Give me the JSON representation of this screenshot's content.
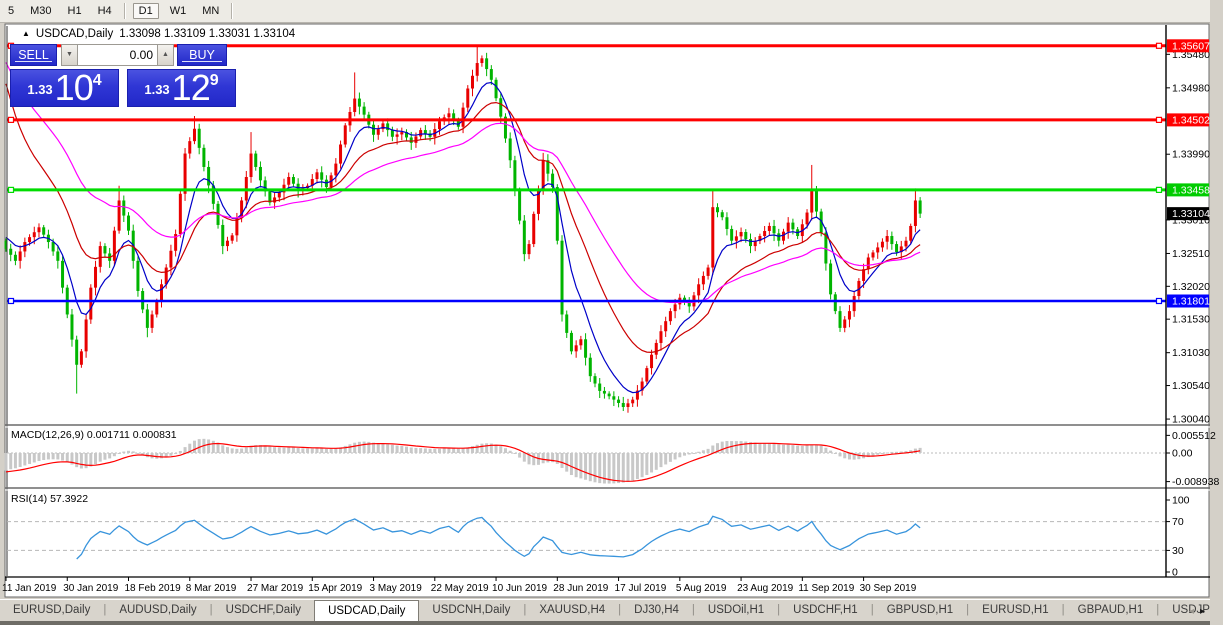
{
  "toolbar": {
    "timeframes": [
      {
        "label": "5",
        "active": false
      },
      {
        "label": "M30",
        "active": false
      },
      {
        "label": "H1",
        "active": false
      },
      {
        "label": "H4",
        "active": false
      },
      {
        "label": "D1",
        "active": true
      },
      {
        "label": "W1",
        "active": false
      },
      {
        "label": "MN",
        "active": false
      }
    ]
  },
  "chart_header": {
    "collapse_icon": "▲",
    "title": "USDCAD,Daily",
    "ohlc_text": "1.33098 1.33109 1.33031 1.33104"
  },
  "trade_panel": {
    "sell_label": "SELL",
    "buy_label": "BUY",
    "volume": "0.00",
    "spin_down_icon": "▼",
    "spin_up_icon": "▲",
    "sell_price": {
      "prefix": "1.33",
      "big": "10",
      "sup": "4"
    },
    "buy_price": {
      "prefix": "1.33",
      "big": "12",
      "sup": "9"
    }
  },
  "indicators": {
    "macd_label": "MACD(12,26,9) 0.001711 0.000831",
    "rsi_label": "RSI(14) 57.3922"
  },
  "chart_data": {
    "type": "candlestick",
    "symbol": "USDCAD",
    "timeframe": "Daily",
    "ohlc_display": {
      "open": "1.33098",
      "high": "1.33109",
      "low": "1.33031",
      "close": "1.33104"
    },
    "colors": {
      "up_candle": "#E80000",
      "down_candle": "#00B400",
      "ma_fast": "#0000C8",
      "ma_mid": "#CC0000",
      "ma_slow": "#FF00FF",
      "level_red": "#FF0000",
      "level_green": "#00DC00",
      "level_blue": "#0000FF",
      "current_badge": "#000000",
      "macd_hist": "#C8C8C8",
      "macd_signal": "#FF0000",
      "rsi_line": "#3894DC"
    },
    "levels": [
      {
        "value": 1.35607,
        "label": "1.35607",
        "color": "#FF0000",
        "width": 3
      },
      {
        "value": 1.34502,
        "label": "1.34502",
        "color": "#FF0000",
        "width": 3
      },
      {
        "value": 1.33458,
        "label": "1.33458",
        "color": "#00DC00",
        "width": 3
      },
      {
        "value": 1.31801,
        "label": "1.31801",
        "color": "#0000FF",
        "width": 2.5
      }
    ],
    "current_price": {
      "value": 1.33104,
      "label": "1.33104"
    },
    "y_axis_ticks": [
      "1.35480",
      "1.34980",
      "1.33990",
      "1.33010",
      "1.32510",
      "1.32020",
      "1.31530",
      "1.31030",
      "1.30540",
      "1.30040"
    ],
    "x_axis_dates": [
      "11 Jan 2019",
      "30 Jan 2019",
      "18 Feb 2019",
      "8 Mar 2019",
      "27 Mar 2019",
      "15 Apr 2019",
      "3 May 2019",
      "22 May 2019",
      "10 Jun 2019",
      "28 Jun 2019",
      "17 Jul 2019",
      "5 Aug 2019",
      "23 Aug 2019",
      "11 Sep 2019",
      "30 Sep 2019"
    ],
    "bars_total": 195,
    "price_path_anchors": [
      [
        0,
        1.3258
      ],
      [
        2,
        1.324
      ],
      [
        4,
        1.3268
      ],
      [
        7,
        1.329
      ],
      [
        9,
        1.3268
      ],
      [
        11,
        1.324
      ],
      [
        13,
        1.316
      ],
      [
        15,
        1.3085,
        null,
        1.3042
      ],
      [
        16,
        1.3105
      ],
      [
        18,
        1.32
      ],
      [
        20,
        1.3262
      ],
      [
        22,
        1.324
      ],
      [
        24,
        1.333,
        1.3352
      ],
      [
        26,
        1.3285
      ],
      [
        28,
        1.3195
      ],
      [
        30,
        1.314,
        null,
        1.3126
      ],
      [
        32,
        1.318
      ],
      [
        34,
        1.323
      ],
      [
        36,
        1.328
      ],
      [
        38,
        1.34
      ],
      [
        40,
        1.3437,
        1.3456
      ],
      [
        42,
        1.338
      ],
      [
        44,
        1.3325
      ],
      [
        46,
        1.3262,
        null,
        1.325
      ],
      [
        48,
        1.3278
      ],
      [
        50,
        1.333
      ],
      [
        52,
        1.34,
        1.3432
      ],
      [
        54,
        1.336
      ],
      [
        56,
        1.3327
      ],
      [
        58,
        1.3342
      ],
      [
        60,
        1.3365
      ],
      [
        62,
        1.3345
      ],
      [
        64,
        1.3352
      ],
      [
        66,
        1.3372
      ],
      [
        68,
        1.335
      ],
      [
        70,
        1.3385
      ],
      [
        72,
        1.3442
      ],
      [
        74,
        1.3482,
        1.3521
      ],
      [
        76,
        1.3458
      ],
      [
        78,
        1.3428
      ],
      [
        80,
        1.3445
      ],
      [
        82,
        1.3425
      ],
      [
        84,
        1.3432
      ],
      [
        86,
        1.3416
      ],
      [
        88,
        1.3435
      ],
      [
        90,
        1.3425
      ],
      [
        92,
        1.3448
      ],
      [
        94,
        1.346
      ],
      [
        96,
        1.344
      ],
      [
        98,
        1.3497
      ],
      [
        100,
        1.3535,
        1.3561
      ],
      [
        101,
        1.3542
      ],
      [
        103,
        1.351
      ],
      [
        105,
        1.3455
      ],
      [
        107,
        1.339
      ],
      [
        109,
        1.33
      ],
      [
        110,
        1.325
      ],
      [
        111,
        1.3265
      ],
      [
        112,
        1.331
      ],
      [
        113,
        1.3345
      ],
      [
        114,
        1.339,
        1.3401
      ],
      [
        116,
        1.335
      ],
      [
        117,
        1.327
      ],
      [
        118,
        1.316
      ],
      [
        120,
        1.3105
      ],
      [
        122,
        1.3123
      ],
      [
        124,
        1.3068
      ],
      [
        126,
        1.3046
      ],
      [
        128,
        1.3038
      ],
      [
        130,
        1.3028
      ],
      [
        131,
        1.3022,
        null,
        1.3016
      ],
      [
        133,
        1.3033
      ],
      [
        135,
        1.306
      ],
      [
        137,
        1.31
      ],
      [
        139,
        1.3135
      ],
      [
        141,
        1.3165
      ],
      [
        143,
        1.3185
      ],
      [
        145,
        1.3172
      ],
      [
        147,
        1.3205
      ],
      [
        149,
        1.323
      ],
      [
        150,
        1.332,
        1.3346
      ],
      [
        152,
        1.3305
      ],
      [
        154,
        1.327
      ],
      [
        156,
        1.3283
      ],
      [
        158,
        1.3262
      ],
      [
        160,
        1.3277
      ],
      [
        162,
        1.3292
      ],
      [
        164,
        1.327
      ],
      [
        166,
        1.3297
      ],
      [
        168,
        1.3277
      ],
      [
        170,
        1.3312
      ],
      [
        171,
        1.3345,
        1.3383
      ],
      [
        173,
        1.3282
      ],
      [
        175,
        1.319
      ],
      [
        177,
        1.314,
        null,
        1.3134
      ],
      [
        179,
        1.3165
      ],
      [
        181,
        1.321
      ],
      [
        183,
        1.3245
      ],
      [
        185,
        1.326
      ],
      [
        187,
        1.3277
      ],
      [
        189,
        1.3253
      ],
      [
        191,
        1.327
      ],
      [
        192,
        1.3292
      ],
      [
        193,
        1.333,
        1.3348
      ],
      [
        194,
        1.33104
      ]
    ],
    "moving_averages": [
      {
        "period": 8,
        "color": "#0000C8",
        "seed": 1.328
      },
      {
        "period": 20,
        "color": "#CC0000",
        "seed": 1.353
      },
      {
        "period": 40,
        "color": "#FF00FF",
        "seed": 1.355
      }
    ],
    "macd": {
      "params": "12,26,9",
      "value": 0.001711,
      "signal": 0.000831,
      "axis_labels": [
        "0.005512",
        "0.00",
        "-0.008938"
      ]
    },
    "rsi": {
      "period": 14,
      "value": 57.3922,
      "axis_labels": [
        "100",
        "70",
        "30",
        "0"
      ],
      "levels": [
        70,
        30
      ]
    }
  },
  "tabs": {
    "separator": "|",
    "items": [
      "EURUSD,Daily",
      "AUDUSD,Daily",
      "USDCHF,Daily",
      "USDCAD,Daily",
      "USDCNH,Daily",
      "XAUUSD,H4",
      "DJ30,H4",
      "USDOil,H1",
      "USDCHF,H1",
      "GBPUSD,H1",
      "EURUSD,H1",
      "GBPAUD,H1",
      "USDJP"
    ],
    "active_index": 3,
    "scroll_left": "◂",
    "scroll_right": "▸"
  }
}
